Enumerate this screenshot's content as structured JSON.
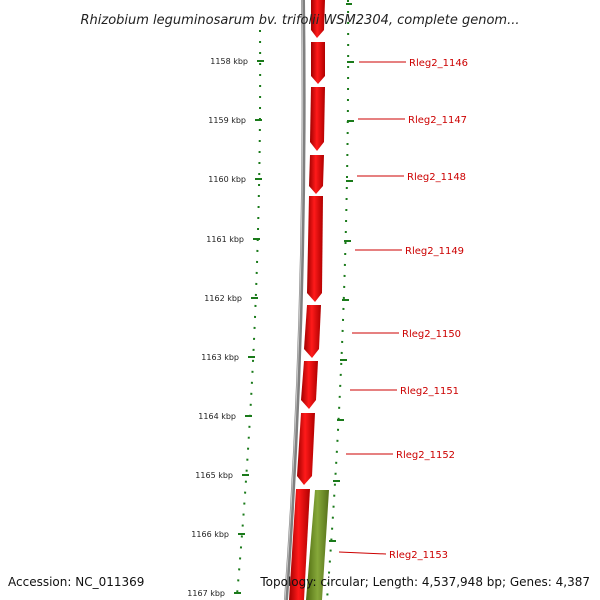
{
  "title": "Rhizobium leguminosarum bv. trifolii WSM2304, complete genom...",
  "footer": {
    "accession": "Accession: NC_011369",
    "topology": "Topology: circular; Length: 4,537,948 bp; Genes: 4,387"
  },
  "ticks": [
    "1158 kbp",
    "1159 kbp",
    "1160 kbp",
    "1161 kbp",
    "1162 kbp",
    "1163 kbp",
    "1164 kbp",
    "1165 kbp",
    "1166 kbp",
    "1167 kbp"
  ],
  "genes": [
    "Rleg2_1146",
    "Rleg2_1147",
    "Rleg2_1148",
    "Rleg2_1149",
    "Rleg2_1150",
    "Rleg2_1151",
    "Rleg2_1152",
    "Rleg2_1153"
  ],
  "colors": {
    "gene_fill": "#ee0000",
    "backbone": "#808080",
    "green_feature": "#6b8e23",
    "tick": "#1a7a1a",
    "label": "#cc0000"
  }
}
